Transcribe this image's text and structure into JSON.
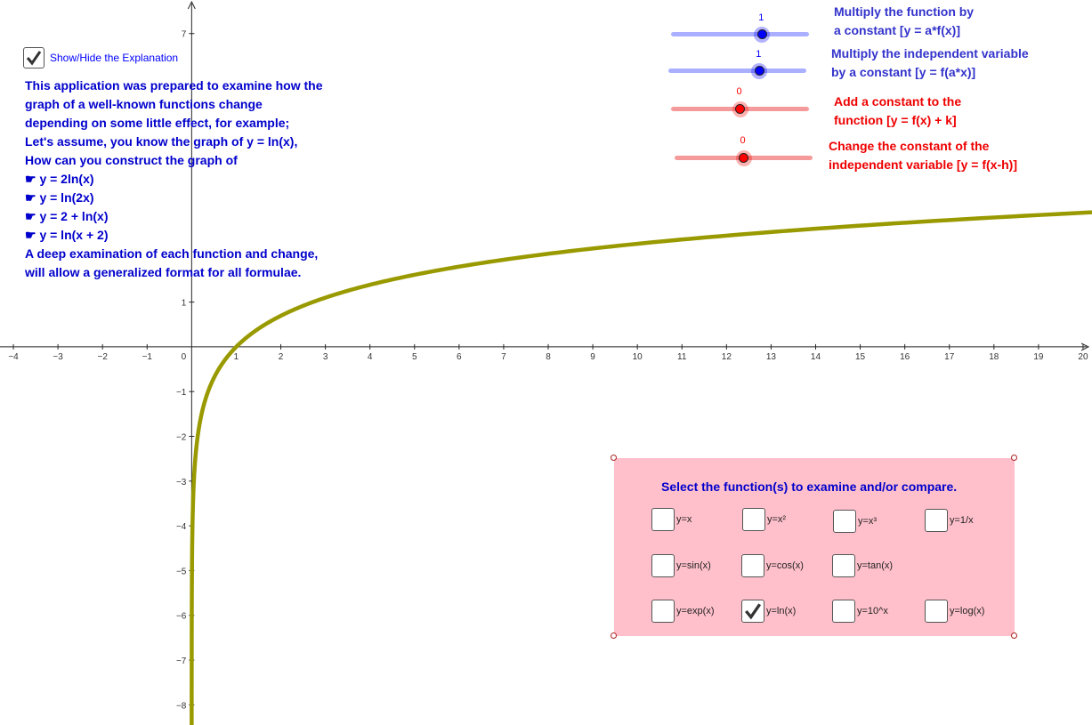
{
  "axes": {
    "x_ticks": [
      "−4",
      "−3",
      "−2",
      "−1",
      "0",
      "1",
      "2",
      "3",
      "4",
      "5",
      "6",
      "7",
      "8",
      "9",
      "10",
      "11",
      "12",
      "13",
      "14",
      "15",
      "16",
      "17",
      "18",
      "19",
      "20"
    ],
    "y_ticks": [
      "7",
      "1",
      "−1",
      "−2",
      "−3",
      "−4",
      "−5",
      "−6",
      "−7",
      "−8"
    ],
    "x_range": [
      -4.3,
      20.2
    ],
    "y_range": [
      -8.45,
      7.75
    ],
    "curve_color": "#999900",
    "function": "ln(x)"
  },
  "explanation_toggle": {
    "label": "Show/Hide the Explanation",
    "checked": true
  },
  "explanation": {
    "lines": [
      "This application was prepared to examine how the",
      "graph of a well-known functions change",
      "depending on some little effect, for example;",
      "Let's assume, you know the graph of y = ln(x),",
      "How can you construct the graph of",
      "☛ y = 2ln(x)",
      "☛ y = ln(2x)",
      "☛ y = 2 + ln(x)",
      "☛ y = ln(x + 2)",
      "A deep examination of each function and change,",
      "will allow a generalized format for all formulae."
    ]
  },
  "sliders": [
    {
      "value": "1",
      "fraction": 0.66,
      "color": "#0000ff",
      "track_color": "#aab0ff",
      "caption": [
        "Multiply the function by",
        "a constant [y = a*f(x)]"
      ]
    },
    {
      "value": "1",
      "fraction": 0.66,
      "color": "#0000ff",
      "track_color": "#aab0ff",
      "caption": [
        "Multiply the independent variable",
        "by a constant [y = f(a*x)]"
      ]
    },
    {
      "value": "0",
      "fraction": 0.5,
      "color": "#ff0000",
      "track_color": "#f59a9a",
      "caption": [
        "Add a constant to the",
        "function [y = f(x) + k]"
      ]
    },
    {
      "value": "0",
      "fraction": 0.5,
      "color": "#ff0000",
      "track_color": "#f59a9a",
      "caption": [
        "Change the constant of the",
        "independent variable [y = f(x-h)]"
      ]
    }
  ],
  "panel": {
    "title": "Select the function(s) to examine and/or compare.",
    "functions": [
      {
        "label": "y=x",
        "checked": false
      },
      {
        "label": "y=x²",
        "checked": false
      },
      {
        "label": "y=x³",
        "checked": false
      },
      {
        "label": "y=1/x",
        "checked": false
      },
      {
        "label": "y=sin(x)",
        "checked": false
      },
      {
        "label": "y=cos(x)",
        "checked": false
      },
      {
        "label": "y=tan(x)",
        "checked": false
      },
      {
        "label": "y=exp(x)",
        "checked": false
      },
      {
        "label": "y=ln(x)",
        "checked": true
      },
      {
        "label": "y=10^x",
        "checked": false
      },
      {
        "label": "y=log(x)",
        "checked": false
      }
    ]
  }
}
